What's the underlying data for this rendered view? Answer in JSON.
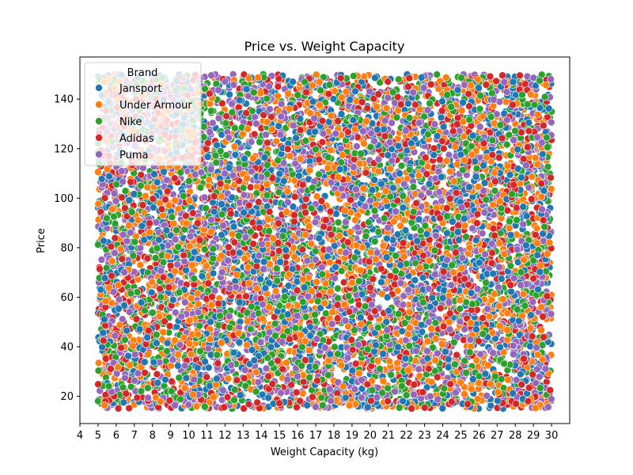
{
  "chart_data": {
    "type": "scatter",
    "title": "Price vs. Weight Capacity",
    "xlabel": "Weight Capacity (kg)",
    "ylabel": "Price",
    "xlim": [
      4,
      31
    ],
    "ylim": [
      9,
      157
    ],
    "x_ticks": [
      4,
      5,
      6,
      7,
      8,
      9,
      10,
      11,
      12,
      13,
      14,
      15,
      16,
      17,
      18,
      19,
      20,
      21,
      22,
      23,
      24,
      25,
      26,
      27,
      28,
      29,
      30
    ],
    "y_ticks": [
      20,
      40,
      60,
      80,
      100,
      120,
      140
    ],
    "x_data_range": [
      5,
      30
    ],
    "y_data_range": [
      15,
      150
    ],
    "grid": false,
    "legend": {
      "title": "Brand",
      "placement": "top-left",
      "entries": [
        {
          "name": "Jansport",
          "color": "#1f77b4"
        },
        {
          "name": "Under Armour",
          "color": "#ff7f0e"
        },
        {
          "name": "Nike",
          "color": "#2ca02c"
        },
        {
          "name": "Adidas",
          "color": "#d62728"
        },
        {
          "name": "Puma",
          "color": "#9467bd"
        }
      ]
    },
    "series": [
      {
        "name": "Jansport",
        "color": "#1f77b4",
        "distribution": "uniform"
      },
      {
        "name": "Under Armour",
        "color": "#ff7f0e",
        "distribution": "uniform"
      },
      {
        "name": "Nike",
        "color": "#2ca02c",
        "distribution": "uniform"
      },
      {
        "name": "Adidas",
        "color": "#d62728",
        "distribution": "uniform"
      },
      {
        "name": "Puma",
        "color": "#9467bd",
        "distribution": "uniform"
      }
    ]
  }
}
